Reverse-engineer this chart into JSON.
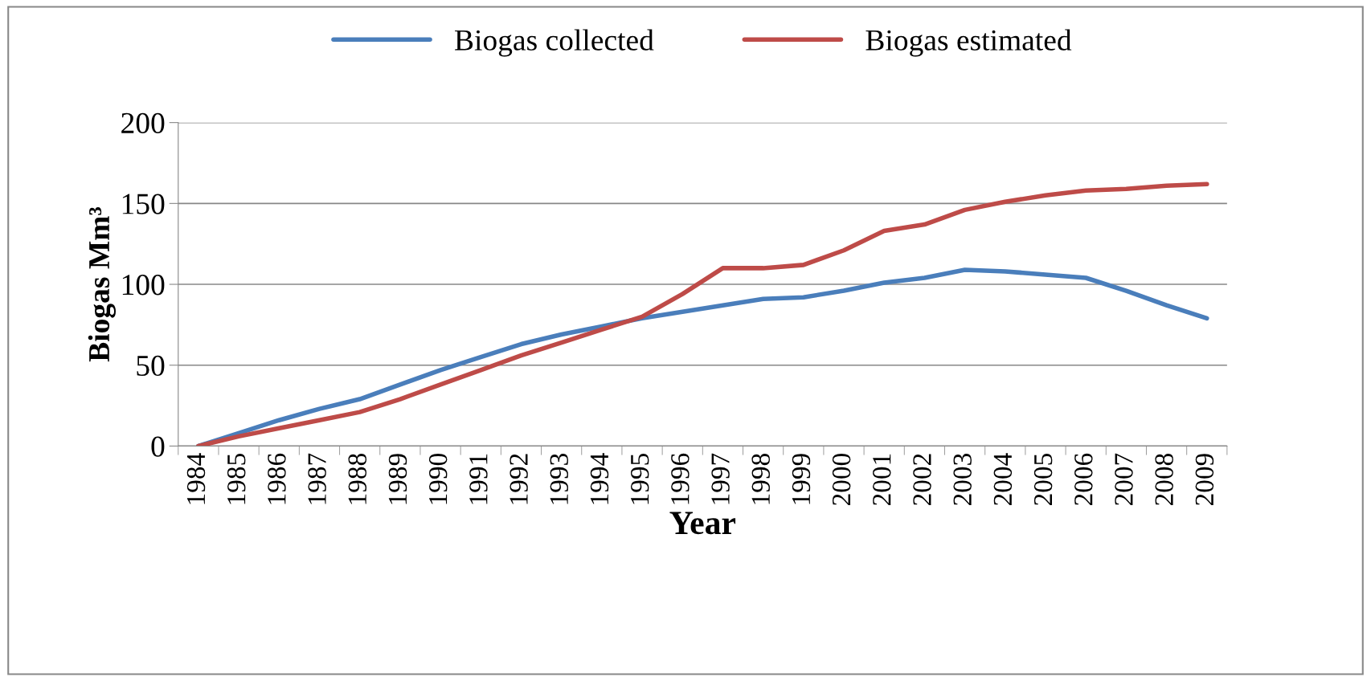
{
  "chart_data": {
    "type": "line",
    "xlabel": "Year",
    "ylabel": "Biogas Mm³",
    "categories": [
      "1984",
      "1985",
      "1986",
      "1987",
      "1988",
      "1989",
      "1990",
      "1991",
      "1992",
      "1993",
      "1994",
      "1995",
      "1996",
      "1997",
      "1998",
      "1999",
      "2000",
      "2001",
      "2002",
      "2003",
      "2004",
      "2005",
      "2006",
      "2007",
      "2008",
      "2009"
    ],
    "series": [
      {
        "name": "Biogas collected",
        "color": "#4a7ebb",
        "values": [
          0,
          8,
          16,
          23,
          29,
          38,
          47,
          55,
          63,
          69,
          74,
          79,
          83,
          87,
          91,
          92,
          96,
          101,
          104,
          109,
          108,
          106,
          104,
          96,
          87,
          79
        ]
      },
      {
        "name": "Biogas estimated",
        "color": "#be4b48",
        "values": [
          0,
          6,
          11,
          16,
          21,
          29,
          38,
          47,
          56,
          64,
          72,
          80,
          94,
          110,
          110,
          112,
          121,
          133,
          137,
          146,
          151,
          155,
          158,
          159,
          161,
          162
        ]
      }
    ],
    "ylim": [
      0,
      200
    ],
    "yticks": [
      0,
      50,
      100,
      150,
      200
    ],
    "grid": "y",
    "legend": "top",
    "marker": "none",
    "line_style": "solid"
  }
}
